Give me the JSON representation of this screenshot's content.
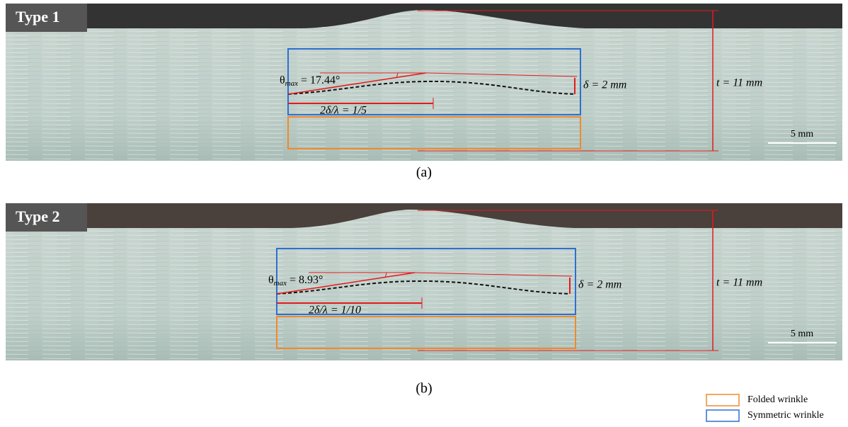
{
  "panels": [
    {
      "label": "Type 1",
      "theta_symbol": "θ",
      "theta_subscript": "max",
      "theta_value": "= 17.44°",
      "delta": "δ = 2 mm",
      "ratio": "2δ/λ = 1/5",
      "thickness": "t = 11 mm",
      "scale": "5 mm",
      "caption": "(a)"
    },
    {
      "label": "Type 2",
      "theta_symbol": "θ",
      "theta_subscript": "max",
      "theta_value": "= 8.93°",
      "delta": "δ = 2 mm",
      "ratio": "2δ/λ = 1/10",
      "thickness": "t = 11 mm",
      "scale": "5 mm",
      "caption": "(b)"
    }
  ],
  "legend": [
    {
      "label": "Folded wrinkle",
      "color": "#f08a2c"
    },
    {
      "label": "Symmetric wrinkle",
      "color": "#2e6fd1"
    }
  ]
}
